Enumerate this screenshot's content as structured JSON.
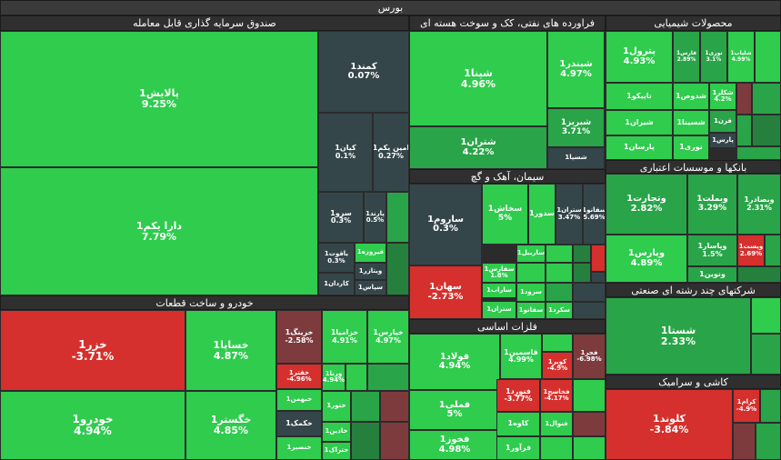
{
  "title": "بورس",
  "colors": {
    "strong_green": "#2fcc4e",
    "mid_green": "#29a448",
    "dark_green": "#25803e",
    "neutral": "#35464a",
    "red": "#d5302d",
    "dark_red": "#7d3b3e",
    "header": "#2f2f2f"
  },
  "sectors": [
    {
      "key": "etf",
      "label": "صندوق سرمایه گذاری قابل معامله"
    },
    {
      "key": "oil",
      "label": "فراورده های نفتی، کک و سوخت هسته ای"
    },
    {
      "key": "chem",
      "label": "محصولات شیمیایی"
    },
    {
      "key": "banks",
      "label": "بانکها و موسسات اعتباری"
    },
    {
      "key": "cement",
      "label": "سیمان، آهک و گچ"
    },
    {
      "key": "auto",
      "label": "خودرو و ساخت قطعات"
    },
    {
      "key": "metals",
      "label": "فلزات اساسی"
    },
    {
      "key": "multi",
      "label": "شرکتهای چند رشته ای صنعتی"
    },
    {
      "key": "tile",
      "label": "کاشی و سرامیک"
    }
  ],
  "tiles": [
    {
      "name": "پالایش1",
      "value": "9.25%",
      "color": "strong_green"
    },
    {
      "name": "دارا یکم1",
      "value": "7.79%",
      "color": "strong_green"
    },
    {
      "name": "کمند1",
      "value": "0.07%",
      "color": "neutral"
    },
    {
      "name": "کیان1",
      "value": "0.1%",
      "color": "neutral"
    },
    {
      "name": "امین یکم1",
      "value": "0.27%",
      "color": "neutral"
    },
    {
      "name": "سرو1",
      "value": "0.3%",
      "color": "neutral"
    },
    {
      "name": "پارند1",
      "value": "0.5%",
      "color": "neutral"
    },
    {
      "name": "یاقوت1",
      "value": "0.3%",
      "color": "neutral"
    },
    {
      "name": "فیروزه1",
      "value": "",
      "color": "strong_green"
    },
    {
      "name": "ویتازر1",
      "value": "",
      "color": "neutral"
    },
    {
      "name": "سپاس1",
      "value": "",
      "color": "neutral"
    },
    {
      "name": "کاردان1",
      "value": "",
      "color": "neutral"
    },
    {
      "name": "شپنا1",
      "value": "4.96%",
      "color": "strong_green"
    },
    {
      "name": "شبندر1",
      "value": "4.97%",
      "color": "strong_green"
    },
    {
      "name": "شتران1",
      "value": "4.22%",
      "color": "mid_green"
    },
    {
      "name": "شبریز1",
      "value": "3.71%",
      "color": "mid_green"
    },
    {
      "name": "شسپا1",
      "value": "",
      "color": "neutral"
    },
    {
      "name": "پترول1",
      "value": "4.93%",
      "color": "strong_green"
    },
    {
      "name": "فارس1",
      "value": "2.89%",
      "color": "mid_green"
    },
    {
      "name": "نوری1",
      "value": "3.1%",
      "color": "mid_green"
    },
    {
      "name": "شلیاب1",
      "value": "4.99%",
      "color": "strong_green"
    },
    {
      "name": "تاپیکو1",
      "value": "",
      "color": "strong_green"
    },
    {
      "name": "شدوص1",
      "value": "",
      "color": "strong_green"
    },
    {
      "name": "شکلر1",
      "value": "4.2%",
      "color": "strong_green"
    },
    {
      "name": "شیران1",
      "value": "",
      "color": "strong_green"
    },
    {
      "name": "شسینا1",
      "value": "",
      "color": "strong_green"
    },
    {
      "name": "قرن1",
      "value": "",
      "color": "mid_green"
    },
    {
      "name": "پارسان1",
      "value": "",
      "color": "strong_green"
    },
    {
      "name": "نوری1",
      "value": "",
      "color": "strong_green"
    },
    {
      "name": "پارس1",
      "value": "",
      "color": "neutral"
    },
    {
      "name": "وتجارت1",
      "value": "2.82%",
      "color": "mid_green"
    },
    {
      "name": "وبملت1",
      "value": "3.29%",
      "color": "mid_green"
    },
    {
      "name": "وبصادر1",
      "value": "2.31%",
      "color": "mid_green"
    },
    {
      "name": "وپارس1",
      "value": "4.89%",
      "color": "strong_green"
    },
    {
      "name": "وپاسار1",
      "value": "1.5%",
      "color": "mid_green"
    },
    {
      "name": "وپست1",
      "value": "2.69%",
      "color": "red"
    },
    {
      "name": "ونوین1",
      "value": "",
      "color": "mid_green"
    },
    {
      "name": "ساروم1",
      "value": "0.3%",
      "color": "neutral"
    },
    {
      "name": "سخاش1",
      "value": "5%",
      "color": "strong_green"
    },
    {
      "name": "سدور1",
      "value": "",
      "color": "strong_green"
    },
    {
      "name": "ستران1",
      "value": "3.47%",
      "color": "neutral"
    },
    {
      "name": "سفانو1",
      "value": "5.69%",
      "color": "neutral"
    },
    {
      "name": "سهان1",
      "value": "-2.73%",
      "color": "red"
    },
    {
      "name": "ساربیل1",
      "value": "",
      "color": "strong_green"
    },
    {
      "name": "سفارس1",
      "value": "1.8%",
      "color": "strong_green"
    },
    {
      "name": "ساراب1",
      "value": "",
      "color": "strong_green"
    },
    {
      "name": "سرود1",
      "value": "",
      "color": "strong_green"
    },
    {
      "name": "ستران1",
      "value": "",
      "color": "strong_green"
    },
    {
      "name": "سفانو1",
      "value": "",
      "color": "strong_green"
    },
    {
      "name": "سکرد1",
      "value": "",
      "color": "strong_green"
    },
    {
      "name": "فولاد1",
      "value": "4.94%",
      "color": "strong_green"
    },
    {
      "name": "فملی1",
      "value": "5%",
      "color": "strong_green"
    },
    {
      "name": "فخوز1",
      "value": "4.98%",
      "color": "strong_green"
    },
    {
      "name": "قاسمین1",
      "value": "4.99%",
      "color": "strong_green"
    },
    {
      "name": "کویر1",
      "value": "-4.9%",
      "color": "red"
    },
    {
      "name": "فجر1",
      "value": "-6.98%",
      "color": "dark_red"
    },
    {
      "name": "فنورد1",
      "value": "-3.77%",
      "color": "red"
    },
    {
      "name": "فخاسج1",
      "value": "-4.17%",
      "color": "red"
    },
    {
      "name": "کاوه1",
      "value": "",
      "color": "strong_green"
    },
    {
      "name": "فنوال1",
      "value": "",
      "color": "strong_green"
    },
    {
      "name": "فرآور1",
      "value": "",
      "color": "strong_green"
    },
    {
      "name": "خزر1",
      "value": "-3.71%",
      "color": "red"
    },
    {
      "name": "خودرو1",
      "value": "4.94%",
      "color": "strong_green"
    },
    {
      "name": "خساپا1",
      "value": "4.87%",
      "color": "strong_green"
    },
    {
      "name": "خگستر1",
      "value": "4.85%",
      "color": "strong_green"
    },
    {
      "name": "خرینگ1",
      "value": "-2.58%",
      "color": "dark_red"
    },
    {
      "name": "خزامیا1",
      "value": "4.91%",
      "color": "strong_green"
    },
    {
      "name": "خپارس1",
      "value": "4.97%",
      "color": "strong_green"
    },
    {
      "name": "خفتر1",
      "value": "-4.96%",
      "color": "red"
    },
    {
      "name": "ورنا1",
      "value": "4.94%",
      "color": "strong_green"
    },
    {
      "name": "خبهمن1",
      "value": "",
      "color": "strong_green"
    },
    {
      "name": "خکمک1",
      "value": "",
      "color": "neutral"
    },
    {
      "name": "خنصیر1",
      "value": "",
      "color": "strong_green"
    },
    {
      "name": "ختور1",
      "value": "",
      "color": "strong_green"
    },
    {
      "name": "خاذین1",
      "value": "",
      "color": "strong_green"
    },
    {
      "name": "ختراک1",
      "value": "",
      "color": "strong_green"
    },
    {
      "name": "شستا1",
      "value": "2.33%",
      "color": "mid_green"
    },
    {
      "name": "کلوند1",
      "value": "-3.84%",
      "color": "red"
    },
    {
      "name": "کرام1",
      "value": "-4.9%",
      "color": "red"
    }
  ]
}
